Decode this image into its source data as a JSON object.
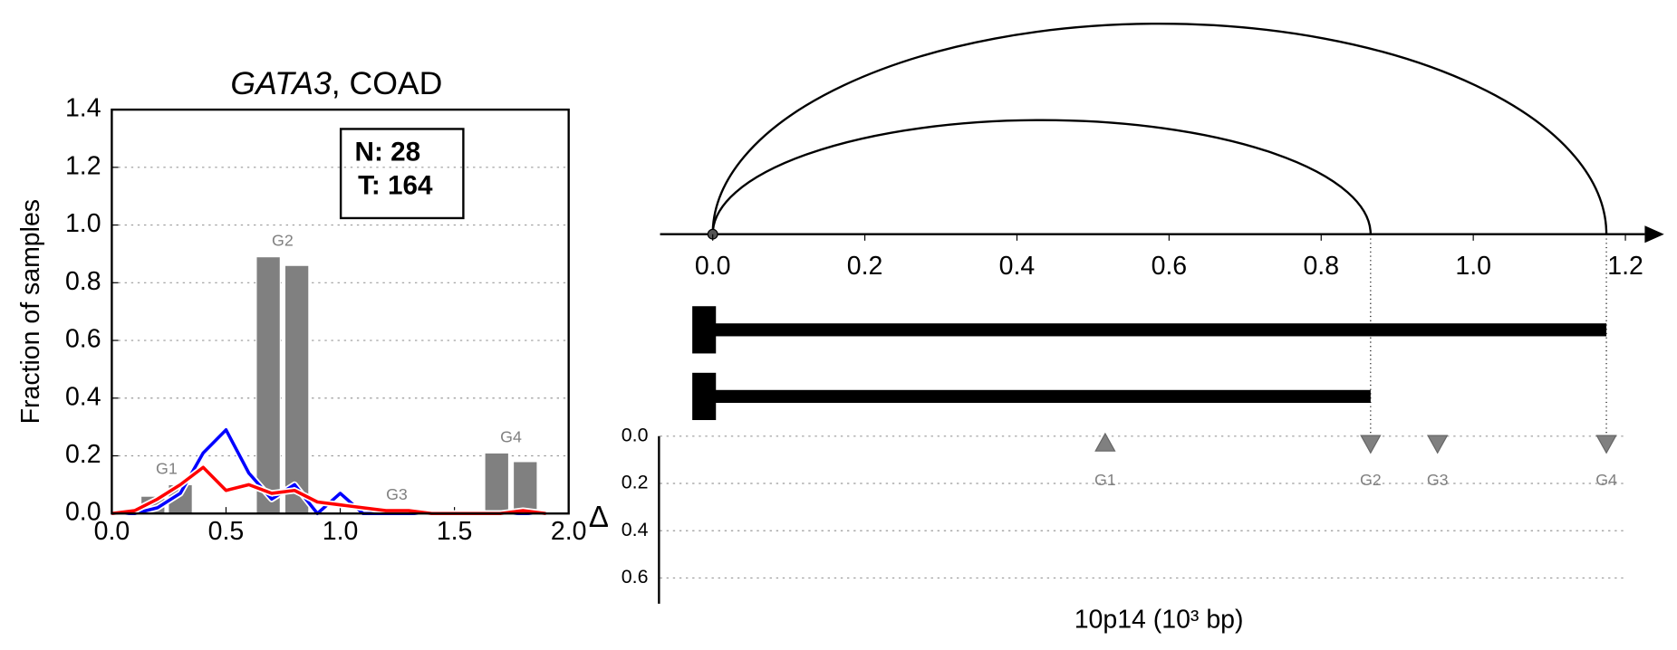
{
  "chart_data": [
    {
      "type": "bar-line",
      "title": [
        "GATA3",
        ", COAD"
      ],
      "ylabel": "Fraction of samples",
      "annotation": [
        "N: 28",
        "T: 164"
      ],
      "xlim": [
        0,
        2
      ],
      "xticks": [
        {
          "value": 0,
          "label": "0.0"
        },
        {
          "value": 0.5,
          "label": "0.5"
        },
        {
          "value": 1,
          "label": "1.0"
        },
        {
          "value": 1.5,
          "label": "1.5"
        },
        {
          "value": 2,
          "label": "2.0"
        }
      ],
      "ylim": [
        0,
        1.4
      ],
      "yticks": [
        {
          "value": 0,
          "label": "0.0"
        },
        {
          "value": 0.2,
          "label": "0.2"
        },
        {
          "value": 0.4,
          "label": "0.4"
        },
        {
          "value": 0.6,
          "label": "0.6"
        },
        {
          "value": 0.8,
          "label": "0.8"
        },
        {
          "value": 1,
          "label": "1.0"
        },
        {
          "value": 1.2,
          "label": "1.2"
        },
        {
          "value": 1.4,
          "label": "1.4"
        }
      ],
      "grid": true,
      "bar_color": "#808080",
      "groups": [
        {
          "label": "G1",
          "x": [
            0.18,
            0.3
          ],
          "values": [
            0.06,
            0.1
          ]
        },
        {
          "label": "G2",
          "x": [
            0.685,
            0.81
          ],
          "values": [
            0.89,
            0.86
          ]
        },
        {
          "label": "G3",
          "x": [
            1.185,
            1.31
          ],
          "values": [
            0.01,
            0
          ]
        },
        {
          "label": "G4",
          "x": [
            1.685,
            1.81
          ],
          "values": [
            0.21,
            0.18
          ]
        }
      ],
      "x": [
        0,
        0.1,
        0.2,
        0.3,
        0.4,
        0.5,
        0.6,
        0.7,
        0.8,
        0.9,
        1.0,
        1.1,
        1.2,
        1.3,
        1.4,
        1.5,
        1.6,
        1.7,
        1.8,
        1.9
      ],
      "series": [
        {
          "color": "#0000ff",
          "values": [
            0,
            0,
            0.02,
            0.07,
            0.21,
            0.29,
            0.14,
            0.05,
            0.1,
            0,
            0.07,
            0,
            0,
            0,
            0,
            0,
            0,
            0,
            0,
            0
          ]
        },
        {
          "color": "#ff0000",
          "values": [
            0,
            0.01,
            0.05,
            0.1,
            0.16,
            0.08,
            0.1,
            0.07,
            0.08,
            0.04,
            0.03,
            0.02,
            0.01,
            0.01,
            0,
            0,
            0,
            0,
            0.01,
            0
          ]
        }
      ]
    },
    {
      "type": "arc",
      "xlabel": "10p14 (10³ bp)",
      "ylabel": "Δ",
      "xlim": [
        -0.07,
        1.23
      ],
      "xticks": [
        {
          "value": 0,
          "label": "0.0"
        },
        {
          "value": 0.2,
          "label": "0.2"
        },
        {
          "value": 0.4,
          "label": "0.4"
        },
        {
          "value": 0.6,
          "label": "0.6"
        },
        {
          "value": 0.8,
          "label": "0.8"
        },
        {
          "value": 1,
          "label": "1.0"
        },
        {
          "value": 1.2,
          "label": "1.2"
        }
      ],
      "ylim": [
        0,
        0.7
      ],
      "yticks": [
        {
          "value": 0,
          "label": "0.0"
        },
        {
          "value": 0.2,
          "label": "0.2"
        },
        {
          "value": 0.4,
          "label": "0.4"
        },
        {
          "value": 0.6,
          "label": "0.6"
        }
      ],
      "grid": true,
      "arcs": [
        {
          "start": 0,
          "end": 0.865
        },
        {
          "start": 0,
          "end": 1.175
        }
      ],
      "segments": [
        {
          "start": 0,
          "end": 1.175
        },
        {
          "start": 0,
          "end": 0.865
        }
      ],
      "marker_color": "#808080",
      "markers": [
        {
          "label": "G1",
          "x": 0.516,
          "delta": 0.03,
          "direction": "up"
        },
        {
          "label": "G2",
          "x": 0.865,
          "delta": 0.03,
          "direction": "down"
        },
        {
          "label": "G3",
          "x": 0.953,
          "delta": 0.03,
          "direction": "down"
        },
        {
          "label": "G4",
          "x": 1.175,
          "delta": 0.03,
          "direction": "down"
        }
      ]
    }
  ]
}
